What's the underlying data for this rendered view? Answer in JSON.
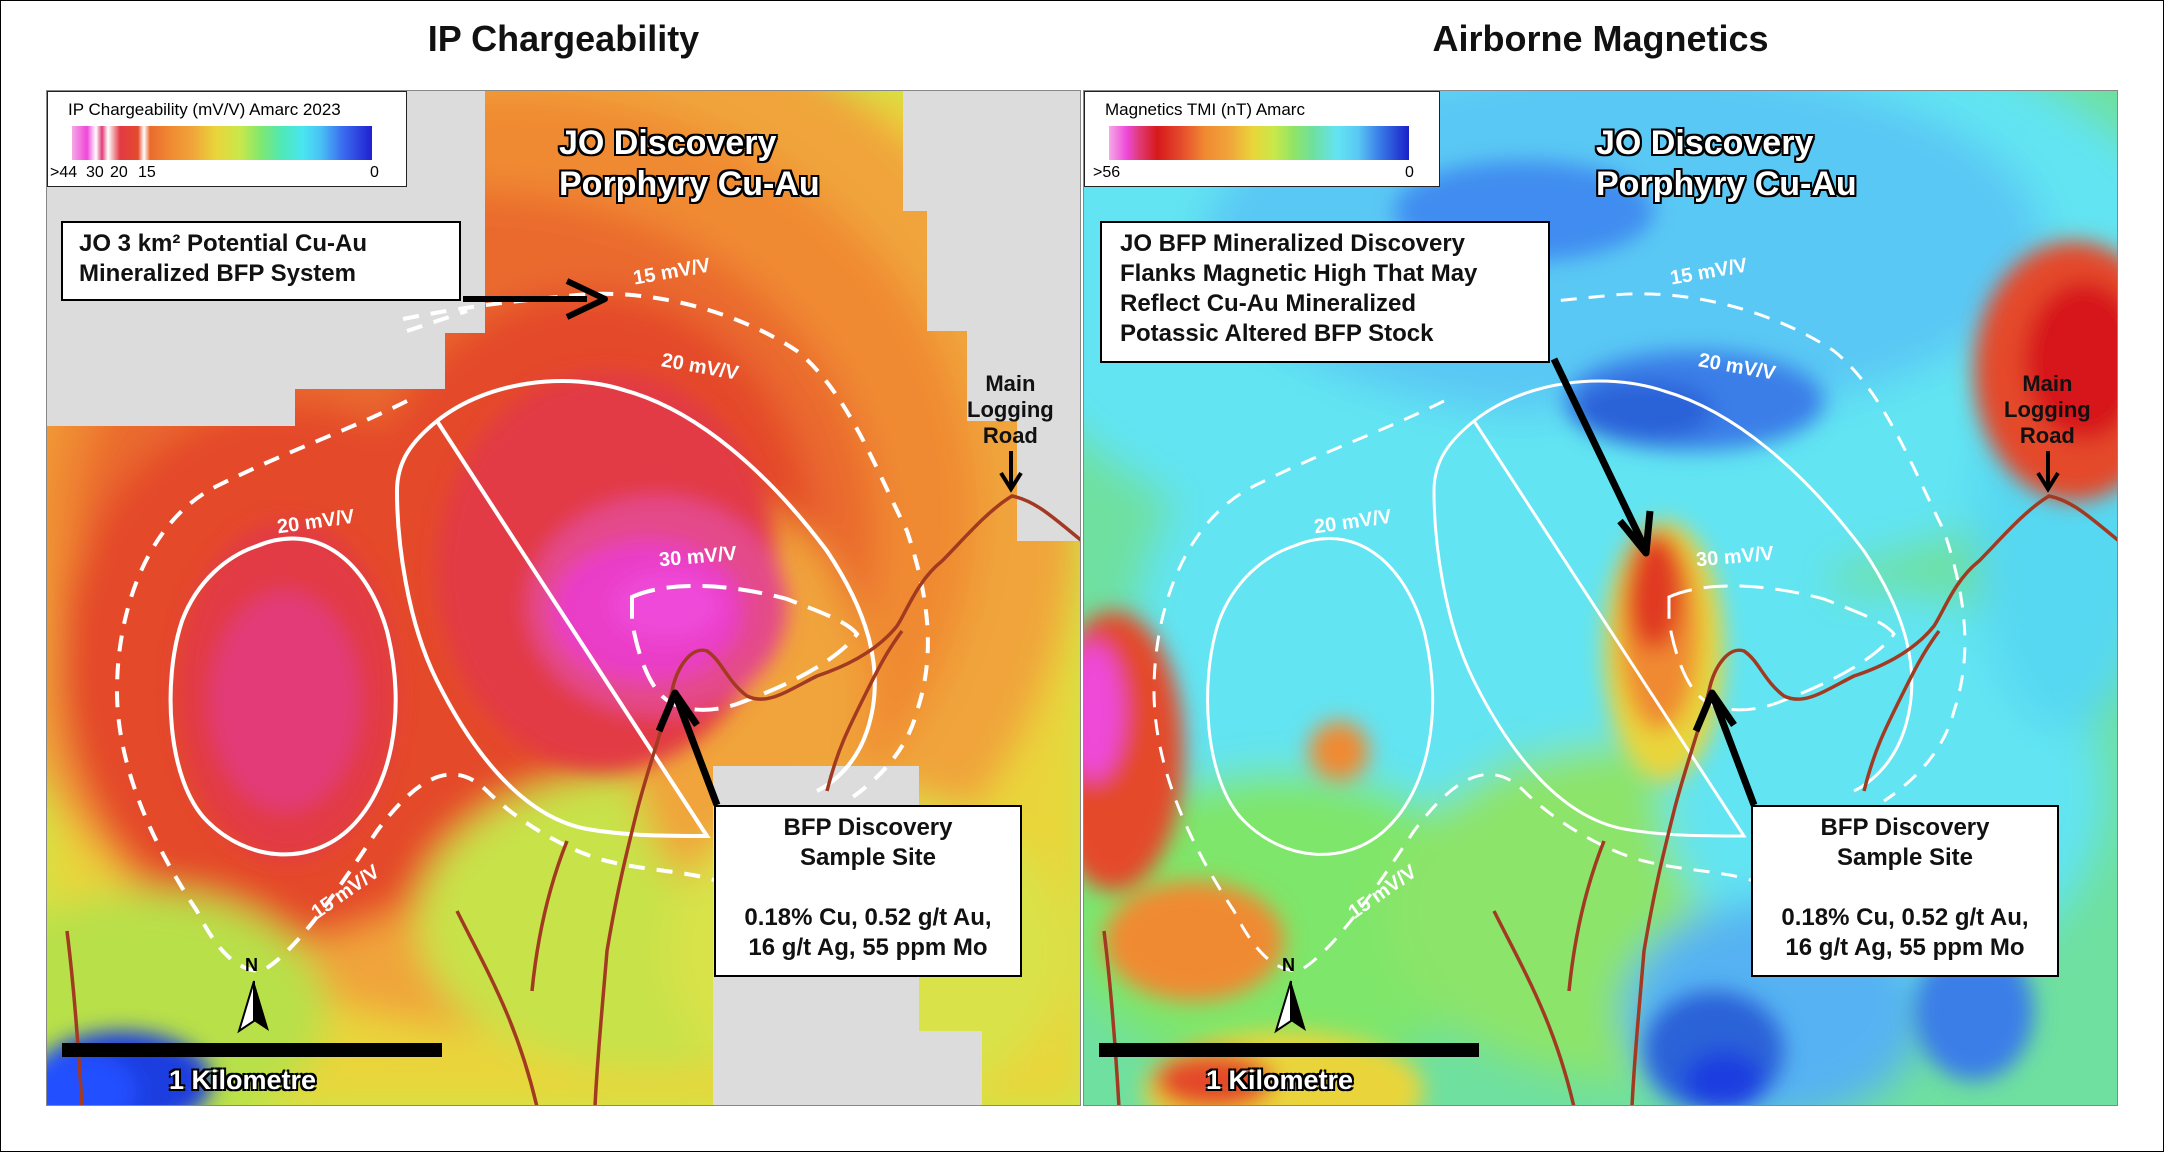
{
  "titles": {
    "left": "IP Chargeability",
    "right": "Airborne Magnetics"
  },
  "left": {
    "legend": {
      "title": "IP Chargeability (mV/V) Amarc 2023",
      "ticks": [
        ">44",
        "30",
        "20",
        "15",
        "0"
      ]
    },
    "discovery_label": [
      "JO Discovery",
      "Porphyry Cu-Au"
    ],
    "callout_top": [
      "JO 3 km² Potential Cu-Au",
      "Mineralized BFP System"
    ],
    "contour_labels": [
      "15 mV/V",
      "20 mV/V",
      "20 mV/V",
      "30 mV/V",
      "15 mV/V"
    ],
    "road_label": [
      "Main",
      "Logging",
      "Road"
    ],
    "sample_box": {
      "title": [
        "BFP Discovery",
        "Sample Site"
      ],
      "assay": [
        "0.18% Cu, 0.52 g/t Au,",
        "16 g/t Ag, 55 ppm Mo"
      ]
    },
    "scale": "1 Kilometre",
    "north": "N"
  },
  "right": {
    "legend": {
      "title": "Magnetics TMI (nT) Amarc",
      "ticks": [
        ">56",
        "0"
      ]
    },
    "discovery_label": [
      "JO Discovery",
      "Porphyry Cu-Au"
    ],
    "callout_top": [
      "JO BFP Mineralized Discovery",
      "Flanks Magnetic High That May",
      "Reflect Cu-Au Mineralized",
      "Potassic Altered BFP Stock"
    ],
    "contour_labels": [
      "15 mV/V",
      "20 mV/V",
      "20 mV/V",
      "30 mV/V",
      "15 mV/V"
    ],
    "road_label": [
      "Main",
      "Logging",
      "Road"
    ],
    "sample_box": {
      "title": [
        "BFP Discovery",
        "Sample Site"
      ],
      "assay": [
        "0.18% Cu, 0.52 g/t Au,",
        "16 g/t Ag, 55 ppm Mo"
      ]
    },
    "scale": "1 Kilometre",
    "north": "N"
  },
  "colors": {
    "road": "#a23a22",
    "contour": "#ffffff",
    "ip_high": "#e8329a",
    "mag_high": "#d7191c",
    "no_data": "#dcdcdc"
  }
}
